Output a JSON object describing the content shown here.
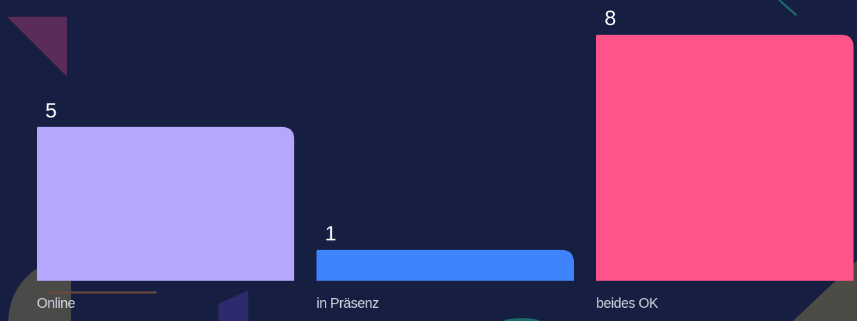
{
  "chart_data": {
    "type": "bar",
    "categories": [
      "Online",
      "in Präsenz",
      "beides OK"
    ],
    "values": [
      5,
      1,
      8
    ],
    "colors": [
      "#b6a6fe",
      "#3f83ff",
      "#fe5489"
    ],
    "ylim": [
      0,
      8
    ],
    "grid": false,
    "legend": "none"
  },
  "theme": {
    "background": "#161e41",
    "label_color": "#d3d6e2",
    "value_color": "#ffffff"
  }
}
